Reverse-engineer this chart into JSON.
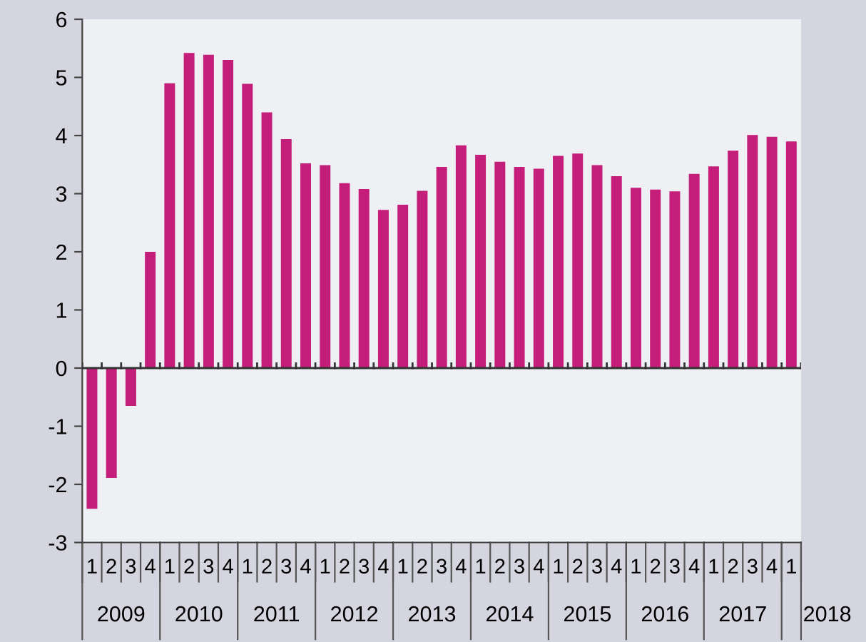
{
  "chart_data": {
    "type": "bar",
    "categories": [
      "1",
      "2",
      "3",
      "4",
      "1",
      "2",
      "3",
      "4",
      "1",
      "2",
      "3",
      "4",
      "1",
      "2",
      "3",
      "4",
      "1",
      "2",
      "3",
      "4",
      "1",
      "2",
      "3",
      "4",
      "1",
      "2",
      "3",
      "4",
      "1",
      "2",
      "3",
      "4",
      "1",
      "2",
      "3",
      "4",
      "1"
    ],
    "values": [
      -2.42,
      -1.89,
      -0.65,
      2.0,
      4.9,
      5.42,
      5.39,
      5.3,
      4.89,
      4.4,
      3.94,
      3.52,
      3.49,
      3.18,
      3.08,
      2.72,
      2.81,
      3.05,
      3.46,
      3.83,
      3.67,
      3.55,
      3.46,
      3.43,
      3.65,
      3.69,
      3.49,
      3.3,
      3.1,
      3.07,
      3.04,
      3.34,
      3.47,
      3.74,
      4.01,
      3.98,
      3.9
    ],
    "color": "#c41e7a",
    "ylim": [
      -3,
      6
    ],
    "yticks": [
      -3,
      -2,
      -1,
      0,
      1,
      2,
      3,
      4,
      5,
      6
    ],
    "legend": false,
    "annotations": [
      "2009",
      "2010",
      "2011",
      "2012",
      "2013",
      "2014",
      "2015",
      "2016",
      "2017",
      "2018"
    ]
  }
}
